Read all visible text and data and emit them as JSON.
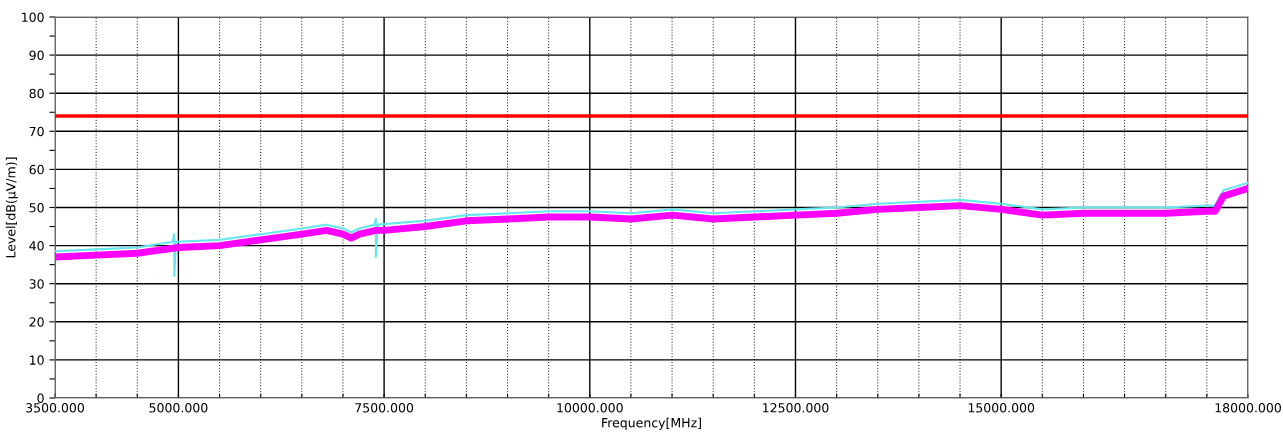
{
  "chart_data": {
    "type": "line",
    "xlabel": "Frequency[MHz]",
    "ylabel": "Level[dB(µV/m)]",
    "xlim": [
      3500,
      18000
    ],
    "ylim": [
      0,
      100
    ],
    "xticks": [
      {
        "value": 3500,
        "label": "3500.000"
      },
      {
        "value": 4000,
        "label": null
      },
      {
        "value": 4500,
        "label": null
      },
      {
        "value": 5000,
        "label": "5000.000"
      },
      {
        "value": 5500,
        "label": null
      },
      {
        "value": 6000,
        "label": null
      },
      {
        "value": 6500,
        "label": null
      },
      {
        "value": 7000,
        "label": null
      },
      {
        "value": 7500,
        "label": "7500.000"
      },
      {
        "value": 8000,
        "label": null
      },
      {
        "value": 8500,
        "label": null
      },
      {
        "value": 9000,
        "label": null
      },
      {
        "value": 9500,
        "label": null
      },
      {
        "value": 10000,
        "label": "10000.000"
      },
      {
        "value": 10500,
        "label": null
      },
      {
        "value": 11000,
        "label": null
      },
      {
        "value": 11500,
        "label": null
      },
      {
        "value": 12000,
        "label": null
      },
      {
        "value": 12500,
        "label": "12500.000"
      },
      {
        "value": 13000,
        "label": null
      },
      {
        "value": 13500,
        "label": null
      },
      {
        "value": 14000,
        "label": null
      },
      {
        "value": 14500,
        "label": null
      },
      {
        "value": 15000,
        "label": "15000.000"
      },
      {
        "value": 15500,
        "label": null
      },
      {
        "value": 16000,
        "label": null
      },
      {
        "value": 16500,
        "label": null
      },
      {
        "value": 17000,
        "label": null
      },
      {
        "value": 17500,
        "label": null
      },
      {
        "value": 18000,
        "label": "18000.000"
      }
    ],
    "yticks": [
      0,
      {
        "value": 5,
        "label": null
      },
      10,
      {
        "value": 15,
        "label": null
      },
      20,
      {
        "value": 25,
        "label": null
      },
      30,
      {
        "value": 35,
        "label": null
      },
      40,
      {
        "value": 45,
        "label": null
      },
      50,
      {
        "value": 55,
        "label": null
      },
      60,
      {
        "value": 65,
        "label": null
      },
      70,
      {
        "value": 75,
        "label": null
      },
      80,
      {
        "value": 85,
        "label": null
      },
      90,
      {
        "value": 95,
        "label": null
      },
      100
    ],
    "grid": true,
    "ref_lines": [
      {
        "axis": "y",
        "value": 74,
        "color": "#ff0000"
      }
    ],
    "series": [
      {
        "color": "#66e6f0",
        "x": [
          3500,
          4000,
          4500,
          4930,
          4950,
          4950,
          4970,
          5500,
          6000,
          6500,
          6800,
          7000,
          7100,
          7200,
          7380,
          7400,
          7400,
          7420,
          8000,
          8500,
          9000,
          9500,
          10000,
          10500,
          11000,
          11500,
          12000,
          12500,
          13000,
          13500,
          14000,
          14500,
          15000,
          15500,
          16000,
          16500,
          17000,
          17500,
          17600,
          17700,
          18000
        ],
        "values": [
          38.5,
          39,
          39.5,
          41,
          43,
          32,
          41,
          41.5,
          43,
          44.5,
          45.5,
          44.5,
          43.5,
          44.5,
          45.5,
          47,
          37,
          45.5,
          46.5,
          48,
          48.5,
          49,
          49,
          48.5,
          49.5,
          48.5,
          49,
          49.5,
          50,
          51,
          51.5,
          52,
          51,
          49.5,
          50,
          50,
          50,
          50.5,
          50.5,
          54.5,
          56.5
        ]
      },
      {
        "color": "#ff00ff",
        "x": [
          3500,
          4000,
          4500,
          5000,
          5500,
          6000,
          6500,
          6800,
          7000,
          7100,
          7200,
          7400,
          7500,
          8000,
          8500,
          9000,
          9500,
          10000,
          10500,
          11000,
          11500,
          12000,
          12500,
          13000,
          13500,
          14000,
          14500,
          15000,
          15500,
          16000,
          16500,
          17000,
          17500,
          17600,
          17700,
          18000
        ],
        "values": [
          37,
          37.5,
          38,
          39.5,
          40,
          41.5,
          43,
          44,
          43,
          42,
          43,
          44,
          44,
          45,
          46.5,
          47,
          47.5,
          47.5,
          47,
          48,
          47,
          47.5,
          48,
          48.5,
          49.5,
          50,
          50.5,
          49.5,
          48,
          48.5,
          48.5,
          48.5,
          49,
          49,
          53,
          55
        ]
      }
    ]
  }
}
